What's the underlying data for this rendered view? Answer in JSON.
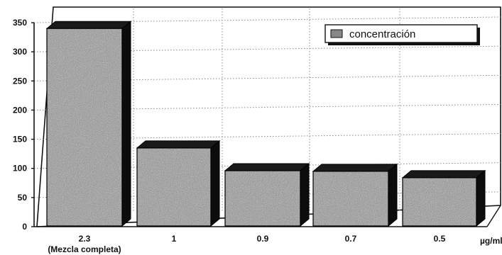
{
  "chart_data": {
    "type": "bar",
    "title": "",
    "xlabel": "",
    "ylabel": "",
    "unit_label": "µg/ml",
    "categories": [
      "2.3",
      "1",
      "0.9",
      "0.7",
      "0.5"
    ],
    "category_sublabels": [
      "(Mezcla completa)",
      "",
      "",
      "",
      ""
    ],
    "series": [
      {
        "name": "concentración",
        "values": [
          340,
          135,
          96,
          95,
          84
        ]
      }
    ],
    "ylim": [
      0,
      350
    ],
    "yticks": [
      0,
      50,
      100,
      150,
      200,
      250,
      300,
      350
    ],
    "grid": true,
    "legend": "top-right",
    "three_d": true,
    "colors": {
      "bar_face": "#9a9a9a",
      "bar_top": "#1a1a1a",
      "bar_side": "#0c0c0c",
      "grid": "#8a8a8a",
      "axis": "#111111"
    }
  }
}
